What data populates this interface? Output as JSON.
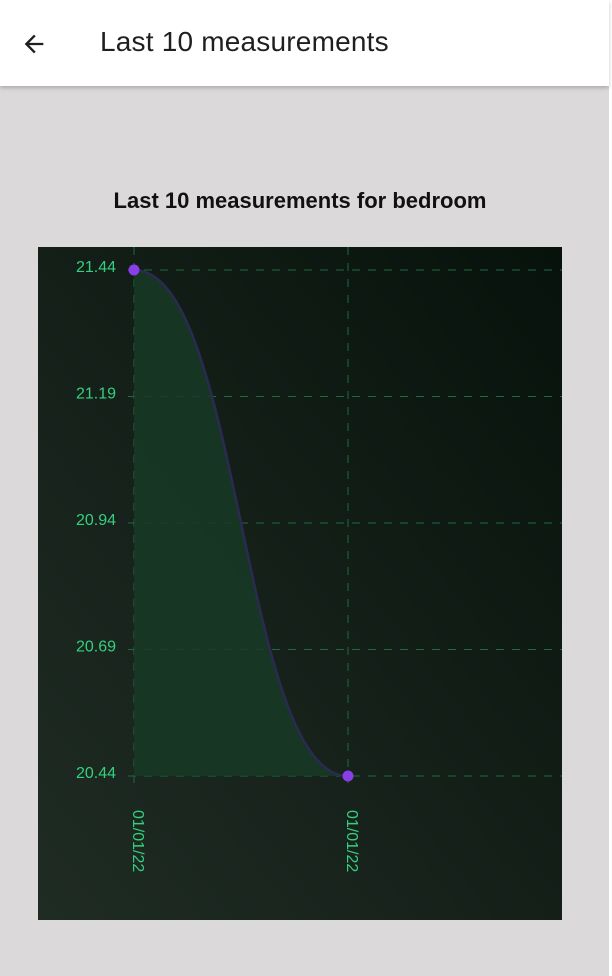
{
  "app_bar": {
    "title": "Last 10 measurements",
    "back_icon": "arrow-back-icon"
  },
  "colors": {
    "background": "#dbd9da",
    "chart_background": "#0d1510",
    "line": "#2b2a52",
    "fill": "#173a26",
    "point": "#8a3ee8",
    "labels": "#35d07f",
    "grid": "#1f6a3e"
  },
  "chart_data": {
    "type": "line",
    "title": "Last 10 measurements for bedroom",
    "xlabel": "",
    "ylabel": "",
    "x": [
      "01/01/22",
      "01/01/22"
    ],
    "series": [
      {
        "values": [
          21.44,
          20.44
        ]
      }
    ],
    "yticks": [
      "21.44",
      "21.19",
      "20.94",
      "20.69",
      "20.44"
    ],
    "ylim": [
      20.44,
      21.44
    ],
    "grid": true,
    "legend": "none",
    "curve": "smooth",
    "area_fill": true
  }
}
